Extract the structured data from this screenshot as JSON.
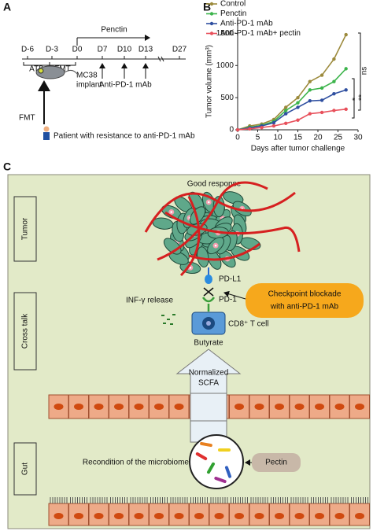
{
  "panel_labels": [
    "A",
    "B",
    "C"
  ],
  "timeline": {
    "days": [
      "D-6",
      "D-3",
      "D0",
      "D7",
      "D10",
      "D13",
      "D27"
    ],
    "treatment": "Penctin",
    "phases": [
      "ATB",
      "FMT"
    ],
    "implant": [
      "MC38",
      "implant"
    ],
    "antibody": "Anti-PD-1 mAb",
    "fmt": "FMT",
    "patient": "Patient with resistance to anti-PD-1 mAb"
  },
  "chart_data": {
    "type": "line",
    "x_label": "Days after tumor challenge",
    "y_label": "Tumor volume (mm³)",
    "x": [
      0,
      3,
      6,
      9,
      12,
      15,
      18,
      21,
      24,
      27
    ],
    "series": [
      {
        "name": "Control",
        "color": "#9c8a3c",
        "values": [
          0,
          60,
          90,
          160,
          350,
          500,
          750,
          850,
          1100,
          1480
        ]
      },
      {
        "name": "Penctin",
        "color": "#3cb44b",
        "values": [
          0,
          40,
          70,
          130,
          300,
          420,
          620,
          650,
          750,
          950
        ]
      },
      {
        "name": "Anti-PD-1 mAb",
        "color": "#2f4fa0",
        "values": [
          0,
          30,
          60,
          110,
          250,
          350,
          450,
          460,
          560,
          620
        ]
      },
      {
        "name": "Anti-PD-1 mAb+ pectin",
        "color": "#e8505b",
        "values": [
          0,
          15,
          35,
          60,
          100,
          150,
          250,
          270,
          300,
          320
        ]
      }
    ],
    "xlim": [
      0,
      30
    ],
    "xticks": [
      0,
      5,
      10,
      15,
      20,
      25,
      30
    ],
    "ylim": [
      0,
      1750
    ],
    "yticks": [
      0,
      500,
      1000,
      1500
    ],
    "annotations": [
      "ns",
      "**",
      "*"
    ]
  },
  "diagram": {
    "sections": [
      "Tumor",
      "Cross talk",
      "Gut"
    ],
    "response": "Good response",
    "ligand": "PD-L1",
    "receptor": "PD-1",
    "blockade": [
      "Checkpoint blockade",
      "with anti-PD-1 mAb"
    ],
    "release": "INF-γ release",
    "cell": "CD8⁺ T cell",
    "metabolite": "Butyrate",
    "scfa": [
      "Normalized",
      "SCFA"
    ],
    "microbiome": "Recondition of the microbiome",
    "pectin": "Pectin"
  }
}
